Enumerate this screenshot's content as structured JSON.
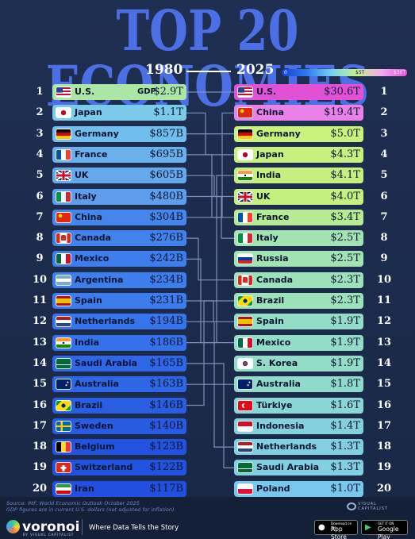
{
  "title": "TOP 20 ECONOMIES",
  "year_left": "1980",
  "year_right": "2025",
  "legend": {
    "min_label": "0",
    "mid_label": "$5T",
    "max_label": "$30T"
  },
  "gdp_prefix": "GDP",
  "colors": {
    "background": "#1f2f52",
    "title": "#4d6fe6",
    "connector": "#7f8fb8",
    "scale_low": "#1740d8",
    "scale_high": "#e64fd6"
  },
  "chart_data": {
    "type": "table",
    "title": "TOP 20 ECONOMIES",
    "unit_note": "Nominal GDP in current U.S. dollars",
    "color_scale": {
      "stops": [
        0,
        0.1,
        0.2,
        0.5,
        1,
        2,
        5,
        30
      ],
      "unit": "USD trillions"
    },
    "years": [
      "1980",
      "2025"
    ],
    "ranking_1980": [
      {
        "rank": "1",
        "country": "U.S.",
        "value_label": "$2.9T",
        "value_tn": 2.9,
        "flag": "us"
      },
      {
        "rank": "2",
        "country": "Japan",
        "value_label": "$1.1T",
        "value_tn": 1.1,
        "flag": "jp"
      },
      {
        "rank": "3",
        "country": "Germany",
        "value_label": "$857B",
        "value_tn": 0.857,
        "flag": "de"
      },
      {
        "rank": "4",
        "country": "France",
        "value_label": "$695B",
        "value_tn": 0.695,
        "flag": "fr"
      },
      {
        "rank": "5",
        "country": "UK",
        "value_label": "$605B",
        "value_tn": 0.605,
        "flag": "uk"
      },
      {
        "rank": "6",
        "country": "Italy",
        "value_label": "$480B",
        "value_tn": 0.48,
        "flag": "it"
      },
      {
        "rank": "7",
        "country": "China",
        "value_label": "$304B",
        "value_tn": 0.304,
        "flag": "cn"
      },
      {
        "rank": "8",
        "country": "Canada",
        "value_label": "$276B",
        "value_tn": 0.276,
        "flag": "ca"
      },
      {
        "rank": "9",
        "country": "Mexico",
        "value_label": "$242B",
        "value_tn": 0.242,
        "flag": "mx"
      },
      {
        "rank": "10",
        "country": "Argentina",
        "value_label": "$234B",
        "value_tn": 0.234,
        "flag": "ar"
      },
      {
        "rank": "11",
        "country": "Spain",
        "value_label": "$231B",
        "value_tn": 0.231,
        "flag": "es"
      },
      {
        "rank": "12",
        "country": "Netherlands",
        "value_label": "$194B",
        "value_tn": 0.194,
        "flag": "nl"
      },
      {
        "rank": "13",
        "country": "India",
        "value_label": "$186B",
        "value_tn": 0.186,
        "flag": "in"
      },
      {
        "rank": "14",
        "country": "Saudi Arabia",
        "value_label": "$165B",
        "value_tn": 0.165,
        "flag": "sa"
      },
      {
        "rank": "15",
        "country": "Australia",
        "value_label": "$163B",
        "value_tn": 0.163,
        "flag": "au"
      },
      {
        "rank": "16",
        "country": "Brazil",
        "value_label": "$146B",
        "value_tn": 0.146,
        "flag": "br"
      },
      {
        "rank": "17",
        "country": "Sweden",
        "value_label": "$140B",
        "value_tn": 0.14,
        "flag": "se"
      },
      {
        "rank": "18",
        "country": "Belgium",
        "value_label": "$123B",
        "value_tn": 0.123,
        "flag": "be"
      },
      {
        "rank": "19",
        "country": "Switzerland",
        "value_label": "$122B",
        "value_tn": 0.122,
        "flag": "ch"
      },
      {
        "rank": "20",
        "country": "Iran",
        "value_label": "$117B",
        "value_tn": 0.117,
        "flag": "ir"
      }
    ],
    "ranking_2025": [
      {
        "rank": "1",
        "country": "U.S.",
        "value_label": "$30.6T",
        "value_tn": 30.6,
        "flag": "us"
      },
      {
        "rank": "2",
        "country": "China",
        "value_label": "$19.4T",
        "value_tn": 19.4,
        "flag": "cn"
      },
      {
        "rank": "3",
        "country": "Germany",
        "value_label": "$5.0T",
        "value_tn": 5.0,
        "flag": "de"
      },
      {
        "rank": "4",
        "country": "Japan",
        "value_label": "$4.3T",
        "value_tn": 4.3,
        "flag": "jp"
      },
      {
        "rank": "5",
        "country": "India",
        "value_label": "$4.1T",
        "value_tn": 4.1,
        "flag": "in"
      },
      {
        "rank": "6",
        "country": "UK",
        "value_label": "$4.0T",
        "value_tn": 4.0,
        "flag": "uk"
      },
      {
        "rank": "7",
        "country": "France",
        "value_label": "$3.4T",
        "value_tn": 3.4,
        "flag": "fr"
      },
      {
        "rank": "8",
        "country": "Italy",
        "value_label": "$2.5T",
        "value_tn": 2.5,
        "flag": "it"
      },
      {
        "rank": "9",
        "country": "Russia",
        "value_label": "$2.5T",
        "value_tn": 2.5,
        "flag": "ru"
      },
      {
        "rank": "10",
        "country": "Canada",
        "value_label": "$2.3T",
        "value_tn": 2.3,
        "flag": "ca"
      },
      {
        "rank": "11",
        "country": "Brazil",
        "value_label": "$2.3T",
        "value_tn": 2.3,
        "flag": "br"
      },
      {
        "rank": "12",
        "country": "Spain",
        "value_label": "$1.9T",
        "value_tn": 1.9,
        "flag": "es"
      },
      {
        "rank": "13",
        "country": "Mexico",
        "value_label": "$1.9T",
        "value_tn": 1.9,
        "flag": "mx"
      },
      {
        "rank": "14",
        "country": "S. Korea",
        "value_label": "$1.9T",
        "value_tn": 1.9,
        "flag": "kr"
      },
      {
        "rank": "15",
        "country": "Australia",
        "value_label": "$1.8T",
        "value_tn": 1.8,
        "flag": "au"
      },
      {
        "rank": "16",
        "country": "Türkiye",
        "value_label": "$1.6T",
        "value_tn": 1.6,
        "flag": "tr"
      },
      {
        "rank": "17",
        "country": "Indonesia",
        "value_label": "$1.4T",
        "value_tn": 1.4,
        "flag": "id"
      },
      {
        "rank": "18",
        "country": "Netherlands",
        "value_label": "$1.3T",
        "value_tn": 1.3,
        "flag": "nl"
      },
      {
        "rank": "19",
        "country": "Saudi Arabia",
        "value_label": "$1.3T",
        "value_tn": 1.3,
        "flag": "sa"
      },
      {
        "rank": "20",
        "country": "Poland",
        "value_label": "$1.0T",
        "value_tn": 1.0,
        "flag": "pl"
      }
    ]
  },
  "footer": {
    "source_line1": "Source: IMF, World Economic Outlook October 2025",
    "source_line2": "GDP figures are in current U.S. dollars (not adjusted for inflation).",
    "brand": "voronoi",
    "brand_sub": "BY VISUAL CAPITALIST",
    "tagline": "Where Data Tells the Story",
    "vc_logo_line1": "VISUAL",
    "vc_logo_line2": "CAPITALIST",
    "app_store_small": "Download on the",
    "app_store_big": "App Store",
    "google_small": "GET IT ON",
    "google_big": "Google Play"
  }
}
